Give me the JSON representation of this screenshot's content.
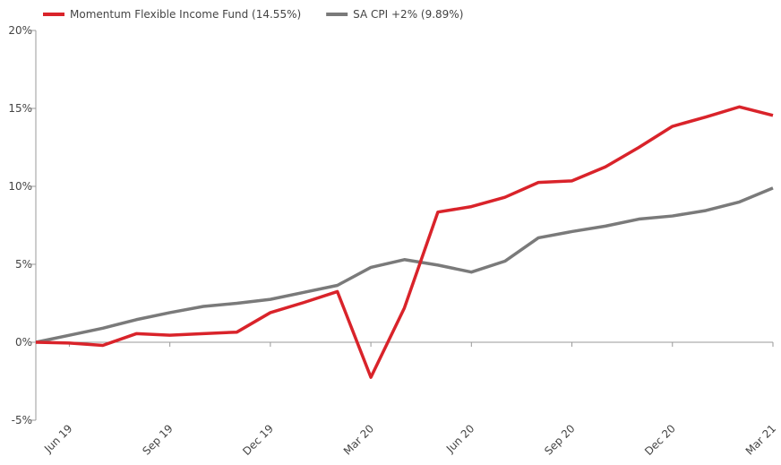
{
  "chart_data": {
    "type": "line",
    "categories": [
      null,
      "Jun 19",
      null,
      null,
      "Sep 19",
      null,
      null,
      "Dec 19",
      null,
      null,
      "Mar 20",
      null,
      null,
      "Jun 20",
      null,
      null,
      "Sep 20",
      null,
      null,
      "Dec 20",
      null,
      null,
      "Mar 21"
    ],
    "series": [
      {
        "name": "Momentum Flexible Income Fund (14.55%)",
        "color": "#d9232a",
        "values": [
          0,
          -0.05,
          -0.2,
          0.55,
          0.45,
          0.55,
          0.65,
          1.9,
          2.55,
          3.25,
          -2.25,
          2.2,
          8.35,
          8.7,
          9.3,
          10.25,
          10.35,
          11.25,
          12.5,
          13.85,
          14.45,
          15.1,
          14.55
        ]
      },
      {
        "name": "SA CPI +2% (9.89%)",
        "color": "#7a7a7a",
        "values": [
          0,
          0.45,
          0.9,
          1.45,
          1.9,
          2.3,
          2.5,
          2.75,
          3.2,
          3.65,
          4.8,
          5.3,
          4.95,
          4.5,
          5.2,
          6.7,
          7.1,
          7.45,
          7.9,
          8.1,
          8.45,
          9.0,
          9.89
        ]
      }
    ],
    "ylim": [
      -5,
      20
    ],
    "yticks": [
      {
        "value": -5,
        "label": "-5%"
      },
      {
        "value": 0,
        "label": "0%"
      },
      {
        "value": 5,
        "label": "5%"
      },
      {
        "value": 10,
        "label": "10%"
      },
      {
        "value": 15,
        "label": "15%"
      },
      {
        "value": 20,
        "label": "20%"
      }
    ],
    "legend": "top-left",
    "grid": false
  }
}
